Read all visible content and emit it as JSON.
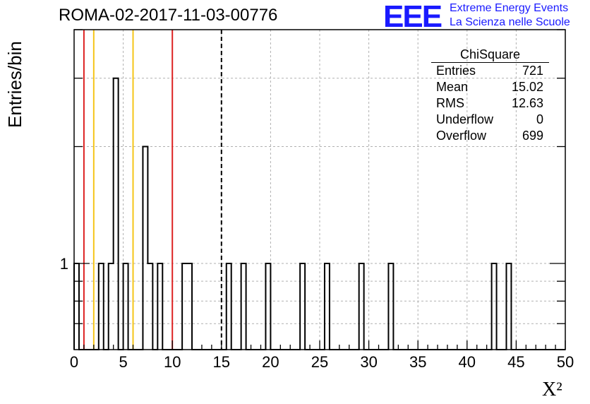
{
  "title": "ROMA-02-2017-11-03-00776",
  "logo": {
    "mark": "EEE",
    "line1": "Extreme Energy Events",
    "line2": "La Scienza nelle Scuole",
    "color": "#1a1aff"
  },
  "stats_box": {
    "title": "ChiSquare",
    "rows": [
      {
        "label": "Entries",
        "value": "721"
      },
      {
        "label": "Mean",
        "value": "15.02"
      },
      {
        "label": "RMS",
        "value": "12.63"
      },
      {
        "label": "Underflow",
        "value": "0"
      },
      {
        "label": "Overflow",
        "value": "699"
      }
    ]
  },
  "chart_data": {
    "type": "bar",
    "title": "ROMA-02-2017-11-03-00776",
    "xlabel": "X²",
    "ylabel": "Entries/bin",
    "xlim": [
      0,
      50
    ],
    "ylim": [
      0.6,
      4
    ],
    "log_y": true,
    "grid": true,
    "bin_width": 0.5,
    "x_ticks": [
      "0",
      "5",
      "10",
      "15",
      "20",
      "25",
      "30",
      "35",
      "40",
      "45",
      "50"
    ],
    "y_ticks": [
      "1"
    ],
    "bins": [
      {
        "x": 0.0,
        "y": 1
      },
      {
        "x": 2.5,
        "y": 1
      },
      {
        "x": 3.5,
        "y": 1
      },
      {
        "x": 4.0,
        "y": 3
      },
      {
        "x": 5.0,
        "y": 1
      },
      {
        "x": 7.0,
        "y": 2
      },
      {
        "x": 7.5,
        "y": 1
      },
      {
        "x": 8.5,
        "y": 1
      },
      {
        "x": 11.0,
        "y": 1
      },
      {
        "x": 11.5,
        "y": 1
      },
      {
        "x": 15.5,
        "y": 1
      },
      {
        "x": 17.0,
        "y": 1
      },
      {
        "x": 19.5,
        "y": 1
      },
      {
        "x": 23.0,
        "y": 1
      },
      {
        "x": 25.5,
        "y": 1
      },
      {
        "x": 29.0,
        "y": 1
      },
      {
        "x": 32.0,
        "y": 1
      },
      {
        "x": 42.5,
        "y": 1
      },
      {
        "x": 44.0,
        "y": 1
      }
    ],
    "vertical_lines": [
      {
        "x": 1.0,
        "color": "#dd2222",
        "style": "solid"
      },
      {
        "x": 2.0,
        "color": "#f5c518",
        "style": "solid"
      },
      {
        "x": 6.0,
        "color": "#f5c518",
        "style": "solid"
      },
      {
        "x": 10.0,
        "color": "#dd2222",
        "style": "solid"
      },
      {
        "x": 15.0,
        "color": "#000000",
        "style": "dashed"
      }
    ],
    "line_color": "#000000"
  }
}
